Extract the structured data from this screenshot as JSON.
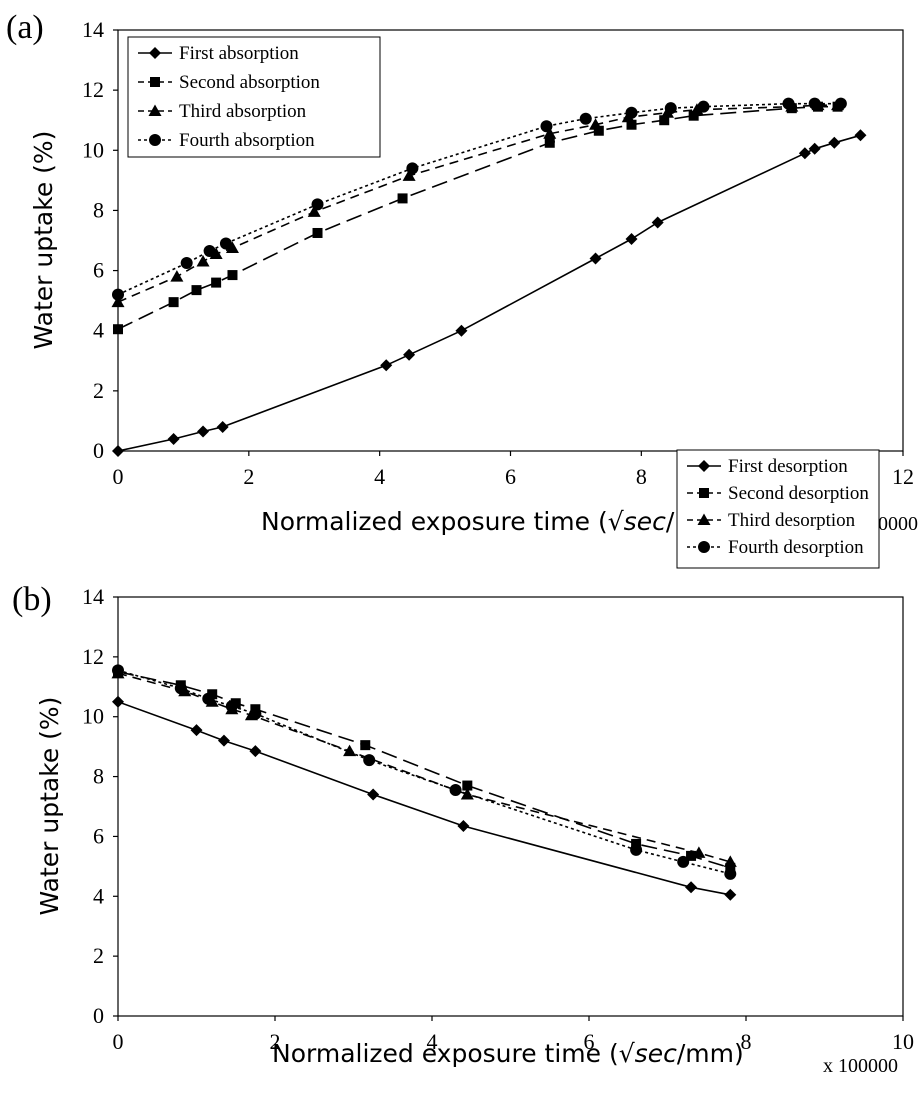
{
  "chart_data": [
    {
      "type": "line",
      "panel_label": "(a)",
      "xlabel_prefix": "Normalized exposure time (",
      "xlabel_sqrt": "√",
      "xlabel_var": "sec",
      "xlabel_suffix": "/mm)",
      "ylabel": "Water uptake (%)",
      "x_multiplier": "x 100000",
      "xlim": [
        0,
        12
      ],
      "ylim": [
        0,
        14
      ],
      "xticks": [
        "0",
        "2",
        "4",
        "6",
        "8",
        "10",
        "12"
      ],
      "yticks": [
        "0",
        "2",
        "4",
        "6",
        "8",
        "10",
        "12",
        "14"
      ],
      "legend_position": "top-left",
      "series": [
        {
          "name": "First absorption",
          "marker": "diamond",
          "line": "solid",
          "x": [
            0,
            0.85,
            1.3,
            1.6,
            4.1,
            4.45,
            5.25,
            7.3,
            7.85,
            8.25,
            10.5,
            10.65,
            10.95,
            11.35
          ],
          "y": [
            0,
            0.4,
            0.65,
            0.8,
            2.85,
            3.2,
            4.0,
            6.4,
            7.05,
            7.6,
            9.9,
            10.05,
            10.25,
            10.5
          ]
        },
        {
          "name": "Second absorption",
          "marker": "square",
          "line": "long-dash",
          "x": [
            0,
            0.85,
            1.2,
            1.5,
            1.75,
            3.05,
            4.35,
            6.6,
            7.35,
            7.85,
            8.35,
            8.8,
            10.3,
            10.7,
            11.0
          ],
          "y": [
            4.05,
            4.95,
            5.35,
            5.6,
            5.85,
            7.25,
            8.4,
            10.25,
            10.65,
            10.85,
            11.0,
            11.15,
            11.4,
            11.45,
            11.45
          ]
        },
        {
          "name": "Third absorption",
          "marker": "triangle",
          "line": "dash",
          "x": [
            0,
            0.9,
            1.3,
            1.5,
            1.75,
            3.0,
            4.45,
            6.6,
            7.3,
            7.8,
            8.4,
            8.85,
            10.3,
            10.7,
            11.0
          ],
          "y": [
            4.95,
            5.8,
            6.3,
            6.55,
            6.75,
            7.95,
            9.15,
            10.55,
            10.85,
            11.1,
            11.25,
            11.35,
            11.45,
            11.5,
            11.5
          ]
        },
        {
          "name": "Fourth absorption",
          "marker": "circle",
          "line": "dot",
          "x": [
            0,
            1.05,
            1.4,
            1.65,
            3.05,
            4.5,
            6.55,
            7.15,
            7.85,
            8.45,
            8.95,
            10.25,
            10.65,
            11.05
          ],
          "y": [
            5.2,
            6.25,
            6.65,
            6.9,
            8.2,
            9.4,
            10.8,
            11.05,
            11.25,
            11.4,
            11.45,
            11.55,
            11.55,
            11.55
          ]
        }
      ]
    },
    {
      "type": "line",
      "panel_label": "(b)",
      "xlabel_prefix": "Normalized exposure time (",
      "xlabel_sqrt": "√",
      "xlabel_var": "sec",
      "xlabel_suffix": "/mm)",
      "ylabel": "Water uptake (%)",
      "x_multiplier": "x 100000",
      "xlim": [
        0,
        10
      ],
      "ylim": [
        0,
        14
      ],
      "xticks": [
        "0",
        "2",
        "4",
        "6",
        "8",
        "10"
      ],
      "yticks": [
        "0",
        "2",
        "4",
        "6",
        "8",
        "10",
        "12",
        "14"
      ],
      "legend_position": "top-right",
      "series": [
        {
          "name": "First desorption",
          "marker": "diamond",
          "line": "solid",
          "x": [
            0,
            1.0,
            1.35,
            1.75,
            3.25,
            4.4,
            7.3,
            7.8
          ],
          "y": [
            10.5,
            9.55,
            9.2,
            8.85,
            7.4,
            6.35,
            4.3,
            4.05
          ]
        },
        {
          "name": "Second desorption",
          "marker": "square",
          "line": "long-dash",
          "x": [
            0,
            0.8,
            1.2,
            1.5,
            1.75,
            3.15,
            4.45,
            6.6,
            7.3,
            7.8
          ],
          "y": [
            11.5,
            11.05,
            10.75,
            10.45,
            10.25,
            9.05,
            7.7,
            5.75,
            5.35,
            4.95
          ]
        },
        {
          "name": "Third desorption",
          "marker": "triangle",
          "line": "dash",
          "x": [
            0,
            0.85,
            1.2,
            1.45,
            1.7,
            2.95,
            4.45,
            7.4,
            7.8
          ],
          "y": [
            11.45,
            10.85,
            10.5,
            10.25,
            10.05,
            8.85,
            7.4,
            5.45,
            5.15
          ]
        },
        {
          "name": "Fourth desorption",
          "marker": "circle",
          "line": "dot",
          "x": [
            0,
            0.8,
            1.15,
            1.45,
            1.75,
            3.2,
            4.3,
            6.6,
            7.2,
            7.8
          ],
          "y": [
            11.55,
            10.95,
            10.6,
            10.35,
            10.1,
            8.55,
            7.55,
            5.55,
            5.15,
            4.75
          ]
        }
      ]
    }
  ]
}
